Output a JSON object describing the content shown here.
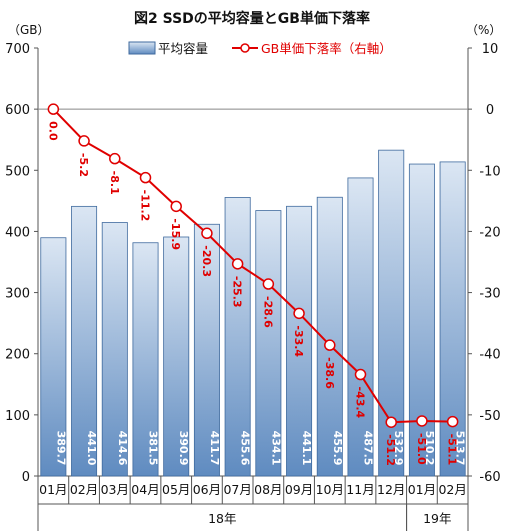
{
  "chart_data": {
    "type": "bar",
    "title": "図2 SSDの平均容量とGB単価下落率",
    "left_unit": "（GB）",
    "right_unit": "（%）",
    "categories": [
      "01月",
      "02月",
      "03月",
      "04月",
      "05月",
      "06月",
      "07月",
      "08月",
      "09月",
      "10月",
      "11月",
      "12月",
      "01月",
      "02月"
    ],
    "year_groups": [
      {
        "label": "18年",
        "start": 0,
        "end": 11
      },
      {
        "label": "19年",
        "start": 12,
        "end": 13
      }
    ],
    "left_axis": {
      "ylim": [
        0,
        700
      ],
      "ticks": [
        0,
        100,
        200,
        300,
        400,
        500,
        600,
        700
      ]
    },
    "right_axis": {
      "ylim": [
        -60,
        10
      ],
      "ticks": [
        10,
        0,
        -10,
        -20,
        -30,
        -40,
        -50,
        -60
      ]
    },
    "series": [
      {
        "name": "平均容量",
        "type": "bar",
        "axis": "left",
        "values": [
          389.7,
          441.0,
          414.6,
          381.5,
          390.9,
          411.7,
          455.6,
          434.1,
          441.1,
          455.9,
          487.5,
          532.9,
          510.2,
          513.7
        ],
        "labels": [
          "389.7",
          "441.0",
          "414.6",
          "381.5",
          "390.9",
          "411.7",
          "455.6",
          "434.1",
          "441.1",
          "455.9",
          "487.5",
          "532.9",
          "510.2",
          "513.7"
        ]
      },
      {
        "name": "GB単価下落率（右軸）",
        "type": "line",
        "axis": "right",
        "values": [
          0.0,
          -5.2,
          -8.1,
          -11.2,
          -15.9,
          -20.3,
          -25.3,
          -28.6,
          -33.4,
          -38.6,
          -43.4,
          -51.2,
          -51.0,
          -51.1
        ],
        "labels": [
          "0.0",
          "-5.2",
          "-8.1",
          "-11.2",
          "-15.9",
          "-20.3",
          "-25.3",
          "-28.6",
          "-33.4",
          "-38.6",
          "-43.4",
          "-51.2",
          "-51.0",
          "-51.1"
        ]
      }
    ],
    "colors": {
      "bar_top": "#dbe6f3",
      "bar_bottom": "#5f8bc0",
      "bar_stroke": "#3f6a9e",
      "line": "#e00000"
    },
    "grid": "horizontal at right-axis 0",
    "legend_placement": "top"
  }
}
